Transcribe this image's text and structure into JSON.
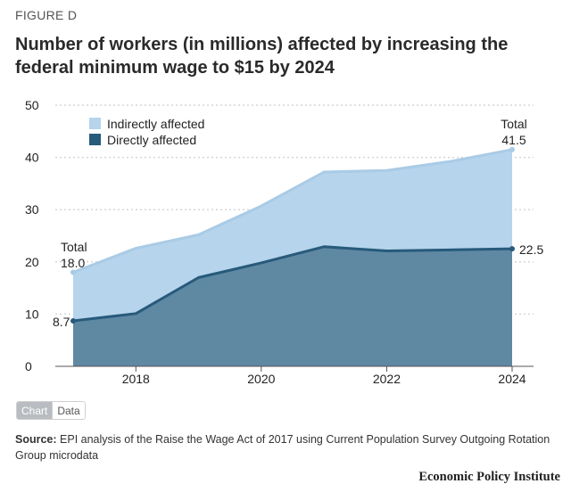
{
  "figure_label": "FIGURE D",
  "title": "Number of workers (in millions) affected by increasing the federal minimum wage to $15 by 2024",
  "view_toggle": {
    "chart_label": "Chart",
    "data_label": "Data",
    "selected": "Chart"
  },
  "source": {
    "prefix": "Source:",
    "text": "EPI analysis of the Raise the Wage Act of 2017 using Current Population Survey Outgoing Rotation Group microdata"
  },
  "brand": "Economic Policy Institute",
  "chart_data": {
    "type": "area",
    "stacked": false,
    "x": [
      2017,
      2018,
      2019,
      2020,
      2021,
      2022,
      2023,
      2024
    ],
    "xticks": [
      "2018",
      "2020",
      "2022",
      "2024"
    ],
    "ylim": [
      0,
      50
    ],
    "yticks": [
      "0",
      "10",
      "20",
      "30",
      "40",
      "50"
    ],
    "grid": true,
    "legend_position": "top-left",
    "series": [
      {
        "name": "Indirectly affected",
        "color": "#b6d4eb",
        "line_color": "#a9cbe6",
        "values": [
          18.0,
          22.6,
          25.2,
          30.7,
          37.2,
          37.5,
          39.2,
          41.5
        ]
      },
      {
        "name": "Directly affected",
        "color": "#5f88a3",
        "line_color": "#275a7b",
        "values": [
          8.7,
          10.1,
          17.0,
          19.8,
          22.9,
          22.1,
          22.3,
          22.5
        ]
      }
    ],
    "annotations": {
      "start_total_label": "Total",
      "start_total_value": "18.0",
      "start_direct_value": "8.7",
      "end_total_label": "Total",
      "end_total_value": "41.5",
      "end_direct_value": "22.5"
    }
  }
}
